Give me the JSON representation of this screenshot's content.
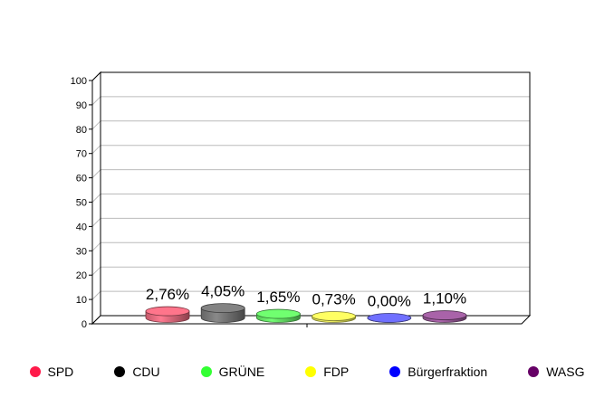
{
  "chart_data": {
    "type": "bar",
    "title": "",
    "xlabel": "",
    "ylabel": "",
    "ylim": [
      0,
      100
    ],
    "yticks": [
      0,
      10,
      20,
      30,
      40,
      50,
      60,
      70,
      80,
      90,
      100
    ],
    "grid": true,
    "legend_position": "bottom",
    "categories": [
      "SPD",
      "CDU",
      "GRÜNE",
      "FDP",
      "Bürgerfraktion",
      "WASG"
    ],
    "values": [
      2.76,
      4.05,
      1.65,
      0.73,
      0.0,
      1.1
    ],
    "data_labels": [
      "2,76%",
      "4,05%",
      "1,65%",
      "0,73%",
      "0,00%",
      "1,10%"
    ],
    "colors": [
      "#ff1a4a",
      "#000000",
      "#33ff33",
      "#ffff00",
      "#0000ff",
      "#660066"
    ],
    "bar_colors": [
      "#e86a7e",
      "#777777",
      "#66e866",
      "#f2f25a",
      "#6666ee",
      "#9a5a9a"
    ]
  },
  "legend": {
    "items": [
      {
        "label": "SPD",
        "color": "#ff1a4a"
      },
      {
        "label": "CDU",
        "color": "#000000"
      },
      {
        "label": "GRÜNE",
        "color": "#33ff33"
      },
      {
        "label": "FDP",
        "color": "#ffff00"
      },
      {
        "label": "Bürgerfraktion",
        "color": "#0000ff"
      },
      {
        "label": "WASG",
        "color": "#660066"
      }
    ]
  }
}
